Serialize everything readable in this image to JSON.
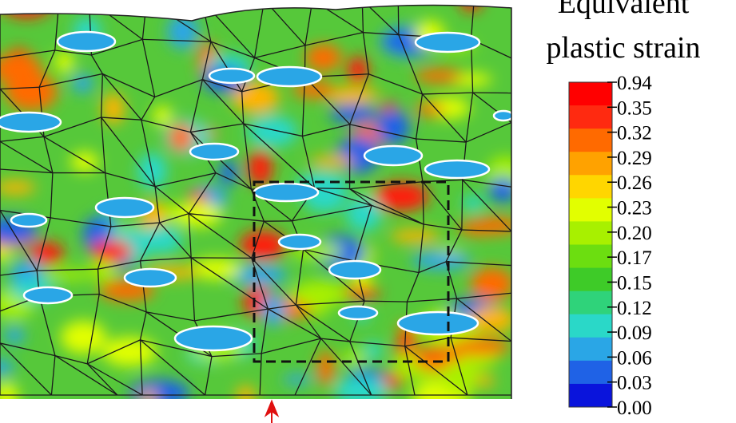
{
  "legend": {
    "title_lines": [
      "Equivalent",
      "plastic strain"
    ],
    "labels": [
      "0.94",
      "0.35",
      "0.32",
      "0.29",
      "0.26",
      "0.23",
      "0.20",
      "0.17",
      "0.15",
      "0.12",
      "0.09",
      "0.06",
      "0.03",
      "0.00"
    ],
    "colors": [
      "#ff0000",
      "#ff2a10",
      "#ff6a00",
      "#ffa200",
      "#ffd600",
      "#e2ff00",
      "#a8f000",
      "#6cde10",
      "#3ecb28",
      "#2fd37a",
      "#2ad8c8",
      "#2aa6e6",
      "#1f62e6",
      "#0a14dc"
    ]
  }
}
